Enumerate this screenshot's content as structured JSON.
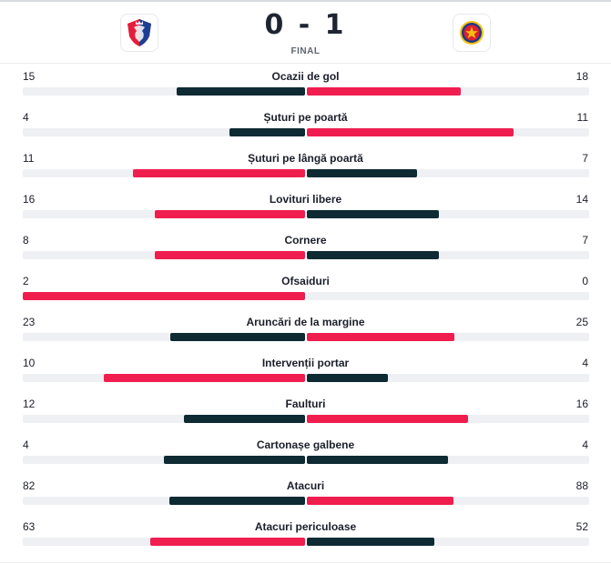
{
  "match": {
    "home_team_logo": "shield-icon",
    "away_team_logo": "star-icon",
    "score": "0 - 1",
    "status": "FINAL"
  },
  "colors": {
    "leader": "#f01e4f",
    "other": "#0e2a33",
    "track": "#eef0f3"
  },
  "stats": [
    {
      "name": "Ocazii de gol",
      "home": "15",
      "away": "18",
      "home_share": 0.455,
      "away_share": 0.545,
      "lead": "away"
    },
    {
      "name": "Șuturi pe poartă",
      "home": "4",
      "away": "11",
      "home_share": 0.267,
      "away_share": 0.733,
      "lead": "away"
    },
    {
      "name": "Șuturi pe lângă poartă",
      "home": "11",
      "away": "7",
      "home_share": 0.611,
      "away_share": 0.389,
      "lead": "home"
    },
    {
      "name": "Lovituri libere",
      "home": "16",
      "away": "14",
      "home_share": 0.533,
      "away_share": 0.467,
      "lead": "home"
    },
    {
      "name": "Cornere",
      "home": "8",
      "away": "7",
      "home_share": 0.533,
      "away_share": 0.467,
      "lead": "home"
    },
    {
      "name": "Ofsaiduri",
      "home": "2",
      "away": "0",
      "home_share": 1.0,
      "away_share": 0.0,
      "lead": "home"
    },
    {
      "name": "Aruncări de la margine",
      "home": "23",
      "away": "25",
      "home_share": 0.479,
      "away_share": 0.521,
      "lead": "away"
    },
    {
      "name": "Intervenții portar",
      "home": "10",
      "away": "4",
      "home_share": 0.714,
      "away_share": 0.286,
      "lead": "home"
    },
    {
      "name": "Faulturi",
      "home": "12",
      "away": "16",
      "home_share": 0.429,
      "away_share": 0.571,
      "lead": "away"
    },
    {
      "name": "Cartonașe galbene",
      "home": "4",
      "away": "4",
      "home_share": 0.5,
      "away_share": 0.5,
      "lead": "none"
    },
    {
      "name": "Atacuri",
      "home": "82",
      "away": "88",
      "home_share": 0.482,
      "away_share": 0.518,
      "lead": "away"
    },
    {
      "name": "Atacuri periculoase",
      "home": "63",
      "away": "52",
      "home_share": 0.548,
      "away_share": 0.452,
      "lead": "home"
    }
  ]
}
